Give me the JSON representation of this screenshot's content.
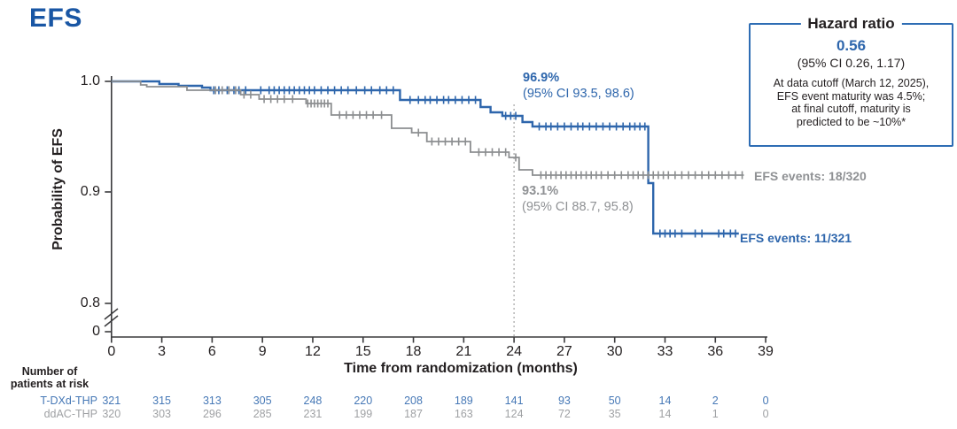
{
  "title": "EFS",
  "colors": {
    "brand_blue": "#1956a4",
    "curve_blue": "#2e66ac",
    "curve_gray": "#8c8e90",
    "annotation_gray": "#8f9194",
    "axis": "#3a3a3c",
    "dotted_line": "#aaaaaa",
    "risk_blue": "#4678b6",
    "risk_gray": "#9fa1a4"
  },
  "y_axis": {
    "label": "Probability of EFS",
    "ticks": [
      "1.0",
      "0.9",
      "0.8",
      "0"
    ]
  },
  "x_axis": {
    "label": "Time from randomization (months)",
    "ticks": [
      "0",
      "3",
      "6",
      "9",
      "12",
      "15",
      "18",
      "21",
      "24",
      "27",
      "30",
      "33",
      "36",
      "39"
    ]
  },
  "annotations": {
    "tdxd_rate": "96.9%",
    "tdxd_ci": "(95% CI 93.5, 98.6)",
    "ddac_rate": "93.1%",
    "ddac_ci": "(95% CI 88.7, 95.8)",
    "tdxd_events": "EFS events: 11/321",
    "ddac_events": "EFS events: 18/320"
  },
  "hazard_box": {
    "title": "Hazard ratio",
    "value": "0.56",
    "ci": "(95% CI 0.26, 1.17)",
    "note_lines": [
      "At data cutoff (March 12, 2025),",
      "EFS event maturity was 4.5%;",
      "at final cutoff, maturity is",
      "predicted to be ~10%*"
    ]
  },
  "risk_table": {
    "header_line1": "Number of",
    "header_line2": "patients at risk",
    "rows": [
      {
        "label": "T-DXd-THP",
        "color": "blue",
        "counts": [
          "321",
          "315",
          "313",
          "305",
          "248",
          "220",
          "208",
          "189",
          "141",
          "93",
          "50",
          "14",
          "2",
          "0"
        ]
      },
      {
        "label": "ddAC-THP",
        "color": "gray",
        "counts": [
          "320",
          "303",
          "296",
          "285",
          "231",
          "199",
          "187",
          "163",
          "124",
          "72",
          "35",
          "14",
          "1",
          "0"
        ]
      }
    ]
  },
  "chart_data": {
    "type": "line",
    "subtype": "kaplan-meier-step",
    "title": "EFS",
    "xlabel": "Time from randomization (months)",
    "ylabel": "Probability of EFS",
    "xlim": [
      0,
      39
    ],
    "x_tick_step": 3,
    "ylim_display": [
      0.8,
      1.0
    ],
    "y_axis_break": true,
    "grid": false,
    "landmark_month": 24,
    "series": [
      {
        "name": "T-DXd-THP",
        "color": "#2e66ac",
        "end_month": 37.4,
        "landmark_estimate_pct": 96.9,
        "landmark_ci": [
          93.5,
          98.6
        ],
        "events": "11/321",
        "steps": [
          [
            0,
            1.0
          ],
          [
            2.85,
            0.9976
          ],
          [
            4.0,
            0.996
          ],
          [
            5.4,
            0.9944
          ],
          [
            5.9,
            0.992
          ],
          [
            17.2,
            0.9832
          ],
          [
            22.0,
            0.9768
          ],
          [
            22.6,
            0.972
          ],
          [
            23.3,
            0.9688
          ],
          [
            24.5,
            0.9632
          ],
          [
            25.1,
            0.9592
          ],
          [
            32.0,
            0.908
          ],
          [
            32.3,
            0.8624
          ]
        ],
        "censor_months": [
          6.1,
          6.4,
          6.9,
          7.3,
          7.6,
          8.0,
          8.9,
          9.4,
          9.7,
          10.0,
          10.3,
          10.6,
          10.9,
          11.2,
          11.5,
          11.8,
          12.1,
          12.5,
          12.9,
          13.3,
          13.7,
          14.1,
          14.6,
          15.1,
          15.5,
          16.0,
          16.4,
          16.8,
          17.8,
          18.3,
          18.7,
          19.0,
          19.4,
          19.8,
          20.1,
          20.5,
          20.9,
          21.3,
          21.7,
          23.5,
          23.8,
          24.1,
          25.5,
          25.9,
          26.2,
          26.6,
          27.0,
          27.4,
          27.8,
          28.1,
          28.5,
          28.9,
          29.3,
          29.7,
          30.1,
          30.5,
          30.9,
          31.2,
          31.5,
          31.8,
          32.7,
          33.0,
          33.3,
          33.6,
          34.0,
          34.8,
          35.2,
          36.2,
          36.5,
          36.9,
          37.2
        ]
      },
      {
        "name": "ddAC-THP",
        "color": "#8c8e90",
        "end_month": 37.7,
        "landmark_estimate_pct": 93.1,
        "landmark_ci": [
          88.7,
          95.8
        ],
        "events": "18/320",
        "steps": [
          [
            0,
            1.0
          ],
          [
            1.74,
            0.9968
          ],
          [
            2.1,
            0.9952
          ],
          [
            4.5,
            0.992
          ],
          [
            7.7,
            0.988
          ],
          [
            8.8,
            0.984
          ],
          [
            11.6,
            0.98
          ],
          [
            13.1,
            0.9696
          ],
          [
            16.7,
            0.9576
          ],
          [
            17.9,
            0.9536
          ],
          [
            18.8,
            0.9456
          ],
          [
            21.4,
            0.936
          ],
          [
            23.7,
            0.9312
          ],
          [
            24.3,
            0.92
          ],
          [
            25.1,
            0.9152
          ]
        ],
        "censor_months": [
          6.2,
          6.6,
          7.0,
          7.4,
          7.9,
          8.3,
          9.1,
          9.5,
          9.9,
          10.3,
          10.8,
          11.7,
          11.9,
          12.1,
          12.3,
          12.5,
          12.7,
          12.9,
          13.6,
          14.0,
          14.4,
          14.8,
          15.2,
          15.6,
          16.1,
          18.3,
          19.1,
          19.5,
          19.9,
          20.3,
          20.7,
          21.1,
          21.9,
          22.3,
          22.7,
          23.1,
          23.5,
          24.1,
          25.6,
          25.9,
          26.2,
          26.5,
          26.8,
          27.1,
          27.4,
          27.7,
          28.0,
          28.3,
          28.6,
          28.9,
          29.2,
          29.6,
          30.0,
          30.4,
          30.8,
          31.1,
          31.4,
          31.7,
          32.0,
          32.3,
          32.6,
          32.9,
          33.2,
          33.6,
          34.0,
          34.4,
          34.8,
          35.2,
          35.6,
          36.0,
          36.4,
          36.8,
          37.2,
          37.6
        ]
      }
    ]
  }
}
